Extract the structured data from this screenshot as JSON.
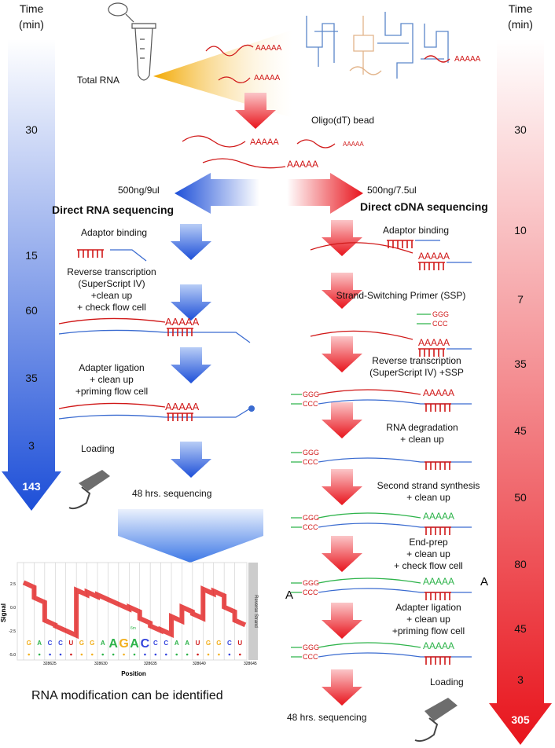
{
  "colors": {
    "rna_accent": "#1d4fd8",
    "cdna_accent": "#e8141c",
    "strand_red": "#d01818",
    "strand_blue": "#3a6bd0",
    "strand_green": "#2db34a",
    "sample_yellow": "#f2b01e"
  },
  "top": {
    "sample_label": "Total RNA",
    "polyA": "AAAAA",
    "bead_label": "Oligo(dT) bead"
  },
  "left_time": {
    "title_line1": "Time",
    "title_line2": "(min)",
    "values": [
      "30",
      "15",
      "60",
      "35",
      "3"
    ],
    "total": "143"
  },
  "right_time": {
    "title_line1": "Time",
    "title_line2": "(min)",
    "values": [
      "30",
      "10",
      "7",
      "35",
      "45",
      "50",
      "80",
      "45",
      "3"
    ],
    "total": "305"
  },
  "rna": {
    "amount": "500ng/9ul",
    "title": "Direct RNA sequencing",
    "steps": [
      {
        "lines": [
          "Adaptor binding"
        ]
      },
      {
        "lines": [
          "Reverse transcription",
          "(SuperScript IV)",
          "+clean up",
          "+ check flow cell"
        ]
      },
      {
        "lines": [
          "Adapter ligation",
          "+ clean up",
          "+priming flow cell"
        ]
      },
      {
        "lines": [
          "Loading"
        ]
      }
    ],
    "sequencing": "48 hrs. sequencing",
    "caption": "RNA modification can be identified"
  },
  "cdna": {
    "amount": "500ng/7.5ul",
    "title": "Direct cDNA sequencing",
    "steps": [
      {
        "lines": [
          "Adaptor binding"
        ]
      },
      {
        "lines": [
          "Strand-Switching Primer (SSP)"
        ]
      },
      {
        "lines": [
          "Reverse transcription",
          "(SuperScript IV) +SSP"
        ]
      },
      {
        "lines": [
          "RNA degradation",
          "+ clean up"
        ]
      },
      {
        "lines": [
          "Second strand synthesis",
          "+ clean up"
        ]
      },
      {
        "lines": [
          "End-prep",
          "+ clean up",
          "+ check flow cell"
        ]
      },
      {
        "lines": [
          "Adapter ligation",
          "+ clean up",
          "+priming flow cell"
        ]
      },
      {
        "lines": [
          "Loading"
        ]
      }
    ],
    "sequencing": "48 hrs. sequencing",
    "ggg": "GGG",
    "ccc": "CCC",
    "a_tail": "A"
  },
  "signal_plot": {
    "ylabel": "Signal",
    "xlabel": "Position",
    "yticks": [
      "2.5",
      "0.0",
      "-2.5",
      "-5.0"
    ],
    "xticks": [
      "328625",
      "328630",
      "328635",
      "328640",
      "328645"
    ],
    "bases": [
      "G",
      "A",
      "C",
      "C",
      "U",
      "G",
      "G",
      "A",
      "A",
      "G",
      "A",
      "C",
      "C",
      "C",
      "A",
      "A",
      "U",
      "G",
      "G",
      "C",
      "U"
    ],
    "mod_label": "6m",
    "strip_label": "Reverse Strand"
  }
}
